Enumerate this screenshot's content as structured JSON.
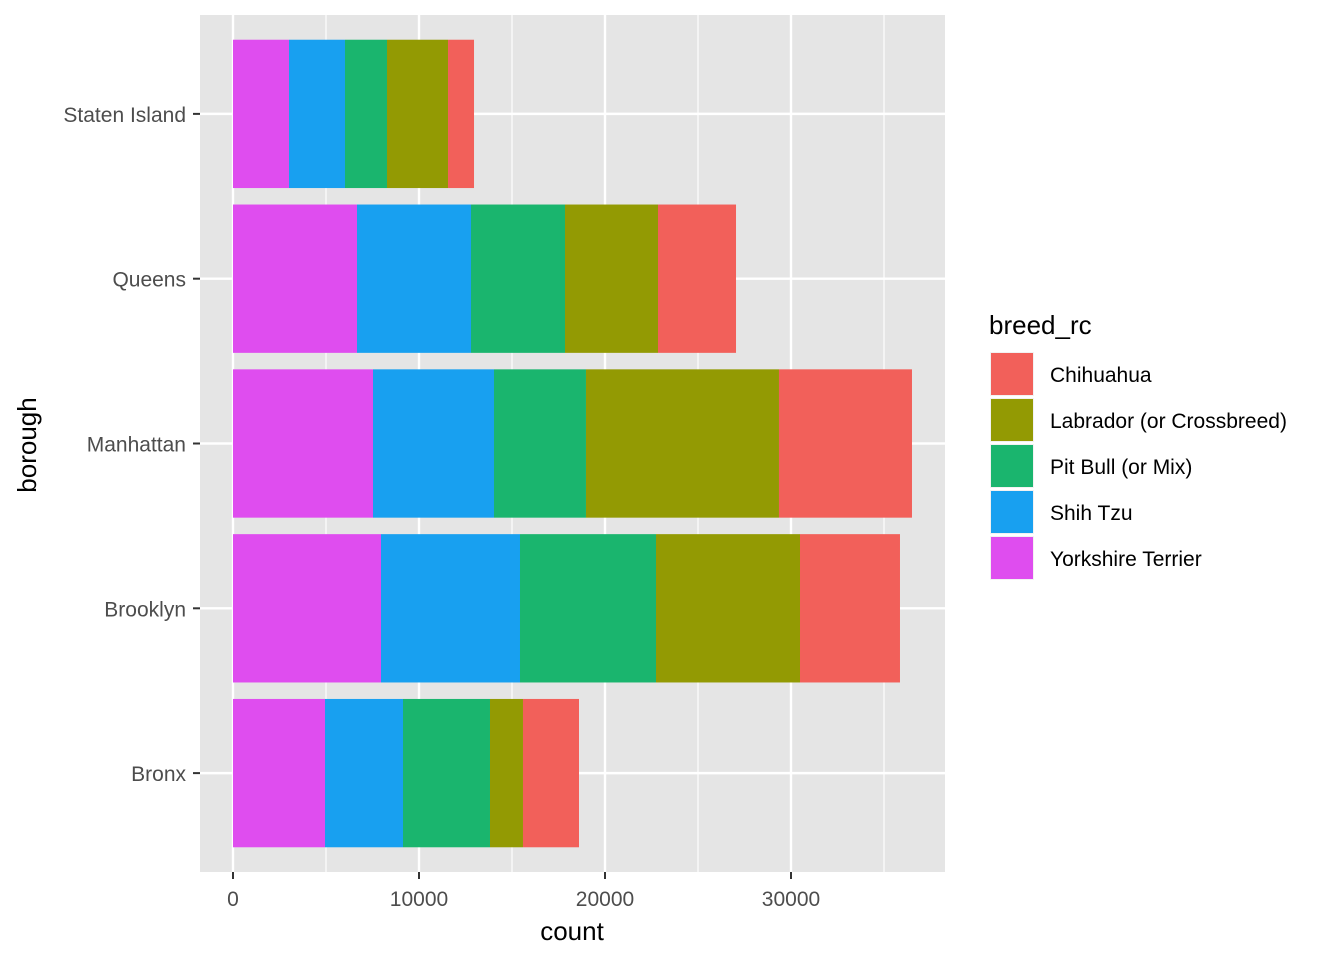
{
  "chart_data": {
    "type": "bar",
    "orientation": "horizontal",
    "stacked": true,
    "title": "",
    "xlabel": "count",
    "ylabel": "borough",
    "xlim": [
      -1774,
      38280
    ],
    "xticks": [
      0,
      10000,
      20000,
      30000
    ],
    "xtick_labels": [
      "0",
      "10000",
      "20000",
      "30000"
    ],
    "grid": true,
    "categories": [
      "Bronx",
      "Brooklyn",
      "Manhattan",
      "Queens",
      "Staten Island"
    ],
    "legend": {
      "title": "breed_rc",
      "placement": "right"
    },
    "series": [
      {
        "name": "Chihuahua",
        "color": "#F2605A",
        "values": [
          3011,
          5376,
          7151,
          4194,
          1398
        ]
      },
      {
        "name": "Labrador (or Crossbreed)",
        "color": "#939A03",
        "values": [
          1774,
          7742,
          10376,
          5000,
          3280
        ]
      },
      {
        "name": "Pit Bull (or Mix)",
        "color": "#1AB56E",
        "values": [
          4677,
          7312,
          4946,
          5054,
          2258
        ]
      },
      {
        "name": "Shih Tzu",
        "color": "#18A0F0",
        "values": [
          4194,
          7473,
          6505,
          6129,
          3011
        ]
      },
      {
        "name": "Yorkshire Terrier",
        "color": "#DF4DEF",
        "values": [
          4946,
          7957,
          7527,
          6667,
          3011
        ]
      }
    ]
  }
}
